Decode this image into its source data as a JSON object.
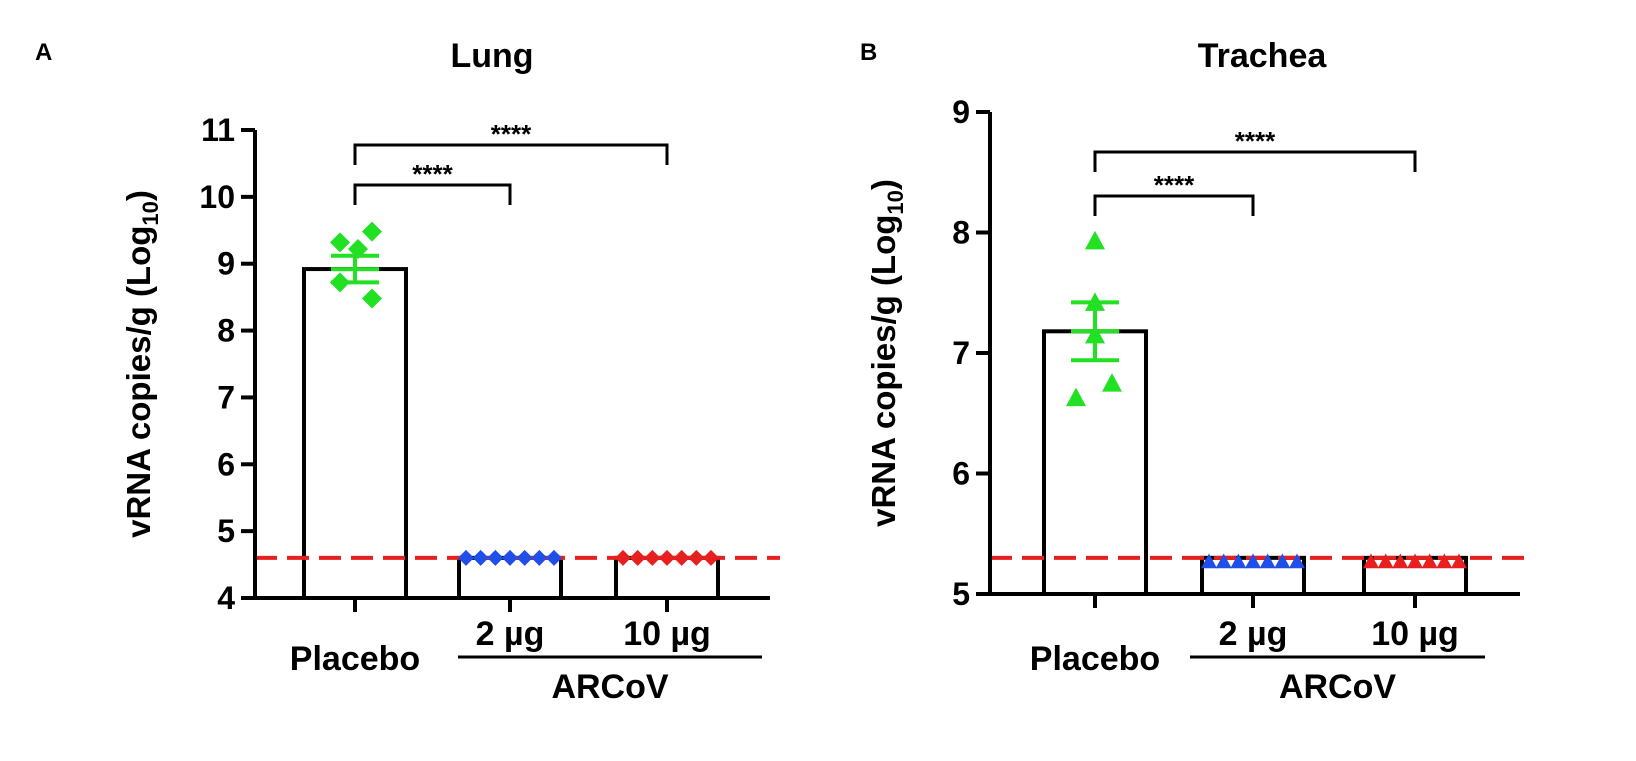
{
  "chart_data": [
    {
      "type": "bar",
      "panel": "A",
      "title": "Lung",
      "ylabel": "vRNA copies/g (Log10)",
      "ylabel_main": "vRNA copies/g (Log",
      "ylabel_sub": "10",
      "ylabel_close": ")",
      "ylim": [
        4,
        11
      ],
      "yticks": [
        "4",
        "5",
        "6",
        "7",
        "8",
        "9",
        "10",
        "11"
      ],
      "categories": [
        "Placebo",
        "2 µg",
        "10 µg"
      ],
      "group_label": "ARCoV",
      "values": [
        8.92,
        4.6,
        4.6
      ],
      "sem": [
        0.2,
        0,
        0
      ],
      "marker": "diamond",
      "colors": [
        "#22e022",
        "#1f4fe8",
        "#e81f1f"
      ],
      "points": [
        [
          9.48,
          9.32,
          9.22,
          8.72,
          8.48
        ],
        [
          4.6,
          4.6,
          4.6,
          4.6,
          4.6,
          4.6,
          4.6
        ],
        [
          4.6,
          4.6,
          4.6,
          4.6,
          4.6,
          4.6,
          4.6
        ]
      ],
      "limit_of_detection": 4.6,
      "lod_color": "#e81f1f",
      "comparisons": [
        {
          "from": 0,
          "to": 1,
          "label": "****"
        },
        {
          "from": 0,
          "to": 2,
          "label": "****"
        }
      ]
    },
    {
      "type": "bar",
      "panel": "B",
      "title": "Trachea",
      "ylabel": "vRNA copies/g (Log10)",
      "ylabel_main": "vRNA copies/g (Log",
      "ylabel_sub": "10",
      "ylabel_close": ")",
      "ylim": [
        5,
        9
      ],
      "yticks": [
        "5",
        "6",
        "7",
        "8",
        "9"
      ],
      "categories": [
        "Placebo",
        "2 µg",
        "10 µg"
      ],
      "group_label": "ARCoV",
      "values": [
        7.18,
        5.3,
        5.3
      ],
      "sem": [
        0.24,
        0,
        0
      ],
      "marker": "triangle",
      "colors": [
        "#22e022",
        "#1f4fe8",
        "#e81f1f"
      ],
      "points": [
        [
          7.93,
          7.42,
          7.15,
          6.75,
          6.63
        ],
        [
          5.27,
          5.27,
          5.27,
          5.27,
          5.27,
          5.27,
          5.27
        ],
        [
          5.27,
          5.27,
          5.27,
          5.27,
          5.27,
          5.27,
          5.27
        ]
      ],
      "limit_of_detection": 5.3,
      "lod_color": "#e81f1f",
      "comparisons": [
        {
          "from": 0,
          "to": 1,
          "label": "****"
        },
        {
          "from": 0,
          "to": 2,
          "label": "****"
        }
      ]
    }
  ]
}
